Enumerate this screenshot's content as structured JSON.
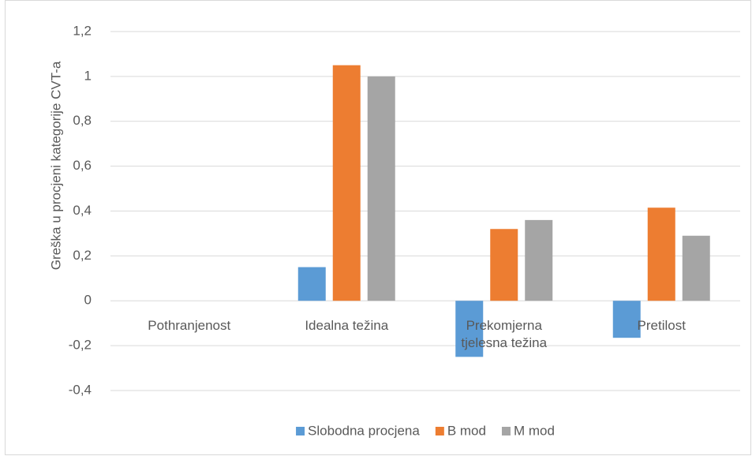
{
  "chart_data": {
    "type": "bar",
    "y_label": "Greška u procjeni kategorije CVT-a",
    "categories": [
      "Pothranjenost",
      "Idealna težina",
      "Prekomjerna tjelesna težina",
      "Pretilost"
    ],
    "series": [
      {
        "name": "Slobodna procjena",
        "color": "#5b9bd5",
        "values": [
          0,
          0.15,
          -0.25,
          -0.165
        ]
      },
      {
        "name": "B mod",
        "color": "#ed7d31",
        "values": [
          0,
          1.05,
          0.32,
          0.415
        ]
      },
      {
        "name": "M mod",
        "color": "#a5a5a5",
        "values": [
          0,
          1,
          0.36,
          0.29
        ]
      }
    ],
    "ylim": [
      -0.4,
      1.2
    ],
    "yticks": [
      {
        "value": -0.4,
        "label": "-0,4"
      },
      {
        "value": -0.2,
        "label": "-0,2"
      },
      0,
      {
        "value": 0.2,
        "label": "0,2"
      },
      {
        "value": 0.4,
        "label": "0,4"
      },
      {
        "value": 0.6,
        "label": "0,6"
      },
      {
        "value": 0.8,
        "label": "0,8"
      },
      1,
      {
        "value": 1.2,
        "label": "1,2"
      }
    ],
    "grid": true,
    "legend": "bottom"
  }
}
